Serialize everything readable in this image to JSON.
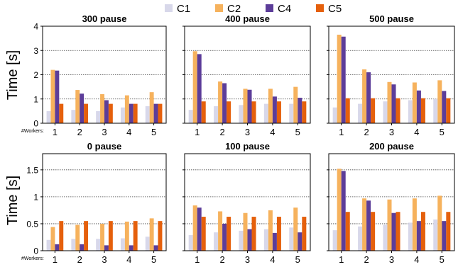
{
  "figure": {
    "ylabel": "Time [s]",
    "x_prefix": "#Workers:",
    "legend": [
      {
        "name": "C1",
        "color": "#d8d8ea"
      },
      {
        "name": "C2",
        "color": "#f6b25d"
      },
      {
        "name": "C4",
        "color": "#5c3d99"
      },
      {
        "name": "C5",
        "color": "#e5600c"
      }
    ],
    "colors": {
      "grid": "#444444",
      "axis": "#000000"
    }
  },
  "chart_data": [
    {
      "type": "bar",
      "title": "300 pause",
      "categories": [
        "1",
        "2",
        "3",
        "4",
        "5"
      ],
      "ylim": [
        0,
        4
      ],
      "yticks": [
        0,
        1,
        2,
        3,
        4
      ],
      "ytick_labels": [
        "0",
        "1",
        "2",
        "3",
        "4"
      ],
      "grid": true,
      "series": [
        {
          "name": "C1",
          "values": [
            0.5,
            0.55,
            0.5,
            0.65,
            0.7
          ]
        },
        {
          "name": "C2",
          "values": [
            2.2,
            1.37,
            1.2,
            1.15,
            1.28
          ]
        },
        {
          "name": "C4",
          "values": [
            2.17,
            1.22,
            0.95,
            0.8,
            0.8
          ]
        },
        {
          "name": "C5",
          "values": [
            0.8,
            0.8,
            0.8,
            0.8,
            0.8
          ]
        }
      ]
    },
    {
      "type": "bar",
      "title": "400 pause",
      "categories": [
        "1",
        "2",
        "3",
        "4",
        "5"
      ],
      "ylim": [
        0,
        4
      ],
      "yticks": [
        0,
        1,
        2,
        3,
        4
      ],
      "ytick_labels": [],
      "grid": true,
      "series": [
        {
          "name": "C1",
          "values": [
            0.55,
            0.7,
            0.75,
            0.8,
            0.8
          ]
        },
        {
          "name": "C2",
          "values": [
            2.97,
            1.72,
            1.42,
            1.42,
            1.5
          ]
        },
        {
          "name": "C4",
          "values": [
            2.85,
            1.65,
            1.38,
            1.1,
            1.05
          ]
        },
        {
          "name": "C5",
          "values": [
            0.9,
            0.9,
            0.9,
            0.9,
            0.9
          ]
        }
      ]
    },
    {
      "type": "bar",
      "title": "500 pause",
      "categories": [
        "1",
        "2",
        "3",
        "4",
        "5"
      ],
      "ylim": [
        0,
        4
      ],
      "yticks": [
        0,
        1,
        2,
        3,
        4
      ],
      "ytick_labels": [],
      "grid": true,
      "series": [
        {
          "name": "C1",
          "values": [
            0.65,
            0.8,
            0.9,
            0.95,
            1.0
          ]
        },
        {
          "name": "C2",
          "values": [
            3.65,
            2.22,
            1.7,
            1.68,
            1.77
          ]
        },
        {
          "name": "C4",
          "values": [
            3.57,
            2.1,
            1.6,
            1.35,
            1.33
          ]
        },
        {
          "name": "C5",
          "values": [
            1.03,
            1.03,
            1.03,
            1.03,
            1.03
          ]
        }
      ]
    },
    {
      "type": "bar",
      "title": "0 pause",
      "categories": [
        "1",
        "2",
        "3",
        "4",
        "5"
      ],
      "ylim": [
        0,
        1.8
      ],
      "yticks": [
        0,
        0.5,
        1,
        1.5
      ],
      "ytick_labels": [
        "0",
        "0.5",
        "1",
        "1.5"
      ],
      "grid": true,
      "series": [
        {
          "name": "C1",
          "values": [
            0.2,
            0.22,
            0.22,
            0.23,
            0.26
          ]
        },
        {
          "name": "C2",
          "values": [
            0.44,
            0.48,
            0.5,
            0.54,
            0.6
          ]
        },
        {
          "name": "C4",
          "values": [
            0.12,
            0.12,
            0.1,
            0.1,
            0.1
          ]
        },
        {
          "name": "C5",
          "values": [
            0.55,
            0.55,
            0.55,
            0.55,
            0.55
          ]
        }
      ]
    },
    {
      "type": "bar",
      "title": "100 pause",
      "categories": [
        "1",
        "2",
        "3",
        "4",
        "5"
      ],
      "ylim": [
        0,
        1.8
      ],
      "yticks": [
        0,
        0.5,
        1,
        1.5
      ],
      "ytick_labels": [],
      "grid": true,
      "series": [
        {
          "name": "C1",
          "values": [
            0.29,
            0.34,
            0.37,
            0.4,
            0.43
          ]
        },
        {
          "name": "C2",
          "values": [
            0.84,
            0.73,
            0.7,
            0.75,
            0.8
          ]
        },
        {
          "name": "C4",
          "values": [
            0.8,
            0.5,
            0.4,
            0.33,
            0.34
          ]
        },
        {
          "name": "C5",
          "values": [
            0.63,
            0.63,
            0.63,
            0.63,
            0.63
          ]
        }
      ]
    },
    {
      "type": "bar",
      "title": "200 pause",
      "categories": [
        "1",
        "2",
        "3",
        "4",
        "5"
      ],
      "ylim": [
        0,
        1.8
      ],
      "yticks": [
        0,
        0.5,
        1,
        1.5
      ],
      "ytick_labels": [],
      "grid": true,
      "series": [
        {
          "name": "C1",
          "values": [
            0.38,
            0.45,
            0.48,
            0.52,
            0.58
          ]
        },
        {
          "name": "C2",
          "values": [
            1.52,
            0.97,
            0.95,
            0.97,
            1.02
          ]
        },
        {
          "name": "C4",
          "values": [
            1.48,
            0.93,
            0.7,
            0.55,
            0.55
          ]
        },
        {
          "name": "C5",
          "values": [
            0.72,
            0.72,
            0.72,
            0.72,
            0.72
          ]
        }
      ]
    }
  ]
}
